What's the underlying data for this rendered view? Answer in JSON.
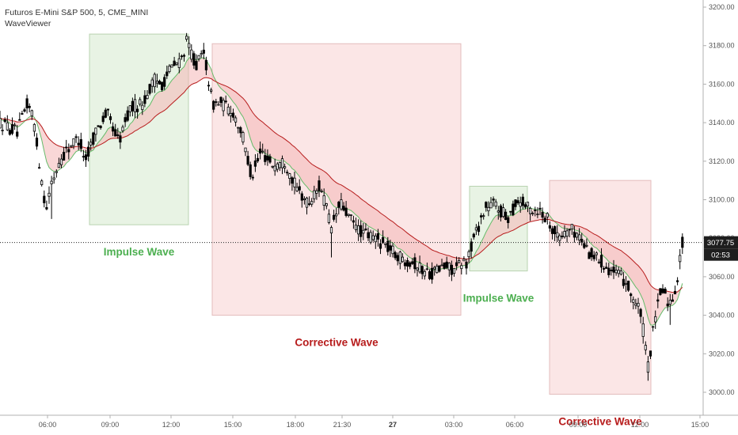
{
  "header": {
    "symbol_title": "Futuros E-Mini S&P 500, 5, CME_MINI",
    "indicator_name": "WaveViewer"
  },
  "colors": {
    "impulse_fill": "#e8f3e4",
    "impulse_border": "#b9d3b0",
    "corrective_fill": "#fbe6e6",
    "corrective_border": "#e3bcbc",
    "impulse_text": "#4caf50",
    "corrective_text": "#b71c1c",
    "ema_slow": "#b71c1c",
    "ema_fast": "#66bb6a",
    "band_fill": "#f4b6b6",
    "candle": "#000000"
  },
  "chart_data": {
    "type": "candlestick",
    "title": "Futuros E-Mini S&P 500, 5, CME_MINI",
    "y_axis": {
      "min": 2990,
      "max": 3205,
      "ticks": [
        3000,
        3020,
        3040,
        3060,
        3080,
        3100,
        3120,
        3140,
        3160,
        3180,
        3200
      ],
      "tick_labels": [
        "3000.00",
        "3020.00",
        "3040.00",
        "3060.00",
        "3080.00",
        "3100.00",
        "3120.00",
        "3140.00",
        "3160.00",
        "3180.00",
        "3200.00"
      ]
    },
    "x_axis": {
      "tick_labels": [
        "06:00",
        "09:00",
        "12:00",
        "15:00",
        "18:00",
        "21:30",
        "27",
        "03:00",
        "06:00",
        "09:00",
        "12:00",
        "15:00"
      ],
      "bold_labels": [
        "27"
      ]
    },
    "last_price": {
      "value": 3077.75,
      "label": "3077.75",
      "countdown": "02:53"
    },
    "price_path": [
      {
        "t": 0,
        "p": 3140
      },
      {
        "t": 22,
        "p": 3135
      },
      {
        "t": 35,
        "p": 3150
      },
      {
        "t": 42,
        "p": 3143
      },
      {
        "t": 50,
        "p": 3118
      },
      {
        "t": 58,
        "p": 3095
      },
      {
        "t": 65,
        "p": 3108
      },
      {
        "t": 75,
        "p": 3120
      },
      {
        "t": 88,
        "p": 3128
      },
      {
        "t": 100,
        "p": 3132
      },
      {
        "t": 108,
        "p": 3120
      },
      {
        "t": 120,
        "p": 3135
      },
      {
        "t": 135,
        "p": 3145
      },
      {
        "t": 150,
        "p": 3130
      },
      {
        "t": 165,
        "p": 3148
      },
      {
        "t": 180,
        "p": 3150
      },
      {
        "t": 195,
        "p": 3162
      },
      {
        "t": 205,
        "p": 3160
      },
      {
        "t": 215,
        "p": 3168
      },
      {
        "t": 228,
        "p": 3172
      },
      {
        "t": 236,
        "p": 3182
      },
      {
        "t": 248,
        "p": 3170
      },
      {
        "t": 258,
        "p": 3176
      },
      {
        "t": 268,
        "p": 3150
      },
      {
        "t": 280,
        "p": 3150
      },
      {
        "t": 295,
        "p": 3145
      },
      {
        "t": 305,
        "p": 3135
      },
      {
        "t": 318,
        "p": 3112
      },
      {
        "t": 330,
        "p": 3125
      },
      {
        "t": 345,
        "p": 3118
      },
      {
        "t": 360,
        "p": 3120
      },
      {
        "t": 375,
        "p": 3105
      },
      {
        "t": 390,
        "p": 3098
      },
      {
        "t": 405,
        "p": 3108
      },
      {
        "t": 418,
        "p": 3085
      },
      {
        "t": 430,
        "p": 3098
      },
      {
        "t": 445,
        "p": 3088
      },
      {
        "t": 460,
        "p": 3082
      },
      {
        "t": 475,
        "p": 3080
      },
      {
        "t": 490,
        "p": 3075
      },
      {
        "t": 505,
        "p": 3070
      },
      {
        "t": 520,
        "p": 3068
      },
      {
        "t": 535,
        "p": 3063
      },
      {
        "t": 545,
        "p": 3062
      },
      {
        "t": 560,
        "p": 3065
      },
      {
        "t": 575,
        "p": 3064
      },
      {
        "t": 590,
        "p": 3068
      },
      {
        "t": 600,
        "p": 3082
      },
      {
        "t": 612,
        "p": 3095
      },
      {
        "t": 625,
        "p": 3098
      },
      {
        "t": 640,
        "p": 3090
      },
      {
        "t": 655,
        "p": 3100
      },
      {
        "t": 668,
        "p": 3095
      },
      {
        "t": 680,
        "p": 3095
      },
      {
        "t": 692,
        "p": 3090
      },
      {
        "t": 705,
        "p": 3080
      },
      {
        "t": 718,
        "p": 3085
      },
      {
        "t": 730,
        "p": 3082
      },
      {
        "t": 745,
        "p": 3072
      },
      {
        "t": 760,
        "p": 3068
      },
      {
        "t": 775,
        "p": 3062
      },
      {
        "t": 790,
        "p": 3058
      },
      {
        "t": 800,
        "p": 3048
      },
      {
        "t": 810,
        "p": 3040
      },
      {
        "t": 818,
        "p": 3012
      },
      {
        "t": 826,
        "p": 3035
      },
      {
        "t": 836,
        "p": 3055
      },
      {
        "t": 846,
        "p": 3045
      },
      {
        "t": 855,
        "p": 3058
      },
      {
        "t": 862,
        "p": 3078
      }
    ],
    "zones": [
      {
        "kind": "impulse",
        "label": "Impulse Wave",
        "t0": 113,
        "t1": 238,
        "p_top": 3186,
        "p_bot": 3087
      },
      {
        "kind": "corrective",
        "label": "Corrective Wave",
        "t0": 268,
        "t1": 582,
        "p_top": 3181,
        "p_bot": 3040
      },
      {
        "kind": "impulse",
        "label": "Impulse Wave",
        "t0": 593,
        "t1": 666,
        "p_top": 3107,
        "p_bot": 3063
      },
      {
        "kind": "corrective",
        "label": "Corrective Wave",
        "t0": 694,
        "t1": 822,
        "p_top": 3110,
        "p_bot": 2999
      }
    ]
  }
}
